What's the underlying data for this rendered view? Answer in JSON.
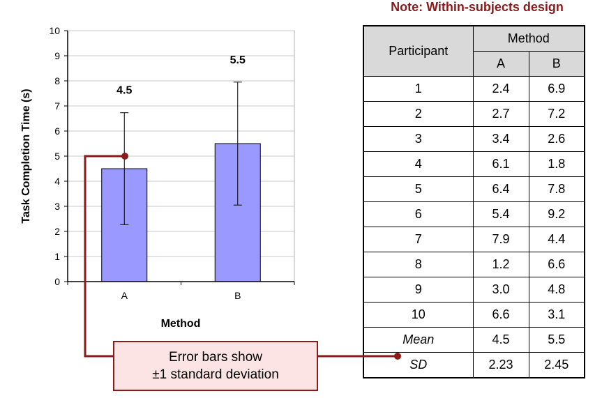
{
  "note": "Note: Within-subjects design",
  "callout": {
    "line1": "Error bars show",
    "line2": "±1 standard deviation"
  },
  "colors": {
    "bar_fill": "#9999ff",
    "bar_stroke": "#000000",
    "accent": "#8b1a1a",
    "callout_fill": "#fde4e4",
    "table_header_fill": "#d9d9d9"
  },
  "chart_data": {
    "type": "bar",
    "categories": [
      "A",
      "B"
    ],
    "values": [
      4.5,
      5.5
    ],
    "data_labels": [
      "4.5",
      "5.5"
    ],
    "error_sd": [
      2.23,
      2.45
    ],
    "xlabel": "Method",
    "ylabel": "Task Completion Time (s)",
    "ylim": [
      0,
      10
    ],
    "yticks": [
      0,
      1,
      2,
      3,
      4,
      5,
      6,
      7,
      8,
      9,
      10
    ],
    "grid": true,
    "plot_area_fill": "#ffffff"
  },
  "table": {
    "col_header_participant": "Participant",
    "col_header_method": "Method",
    "col_header_a": "A",
    "col_header_b": "B",
    "rows": [
      {
        "participant": "1",
        "a": "2.4",
        "b": "6.9"
      },
      {
        "participant": "2",
        "a": "2.7",
        "b": "7.2"
      },
      {
        "participant": "3",
        "a": "3.4",
        "b": "2.6"
      },
      {
        "participant": "4",
        "a": "6.1",
        "b": "1.8"
      },
      {
        "participant": "5",
        "a": "6.4",
        "b": "7.8"
      },
      {
        "participant": "6",
        "a": "5.4",
        "b": "9.2"
      },
      {
        "participant": "7",
        "a": "7.9",
        "b": "4.4"
      },
      {
        "participant": "8",
        "a": "1.2",
        "b": "6.6"
      },
      {
        "participant": "9",
        "a": "3.0",
        "b": "4.8"
      },
      {
        "participant": "10",
        "a": "6.6",
        "b": "3.1"
      }
    ],
    "mean": {
      "label": "Mean",
      "a": "4.5",
      "b": "5.5"
    },
    "sd": {
      "label": "SD",
      "a": "2.23",
      "b": "2.45"
    }
  }
}
